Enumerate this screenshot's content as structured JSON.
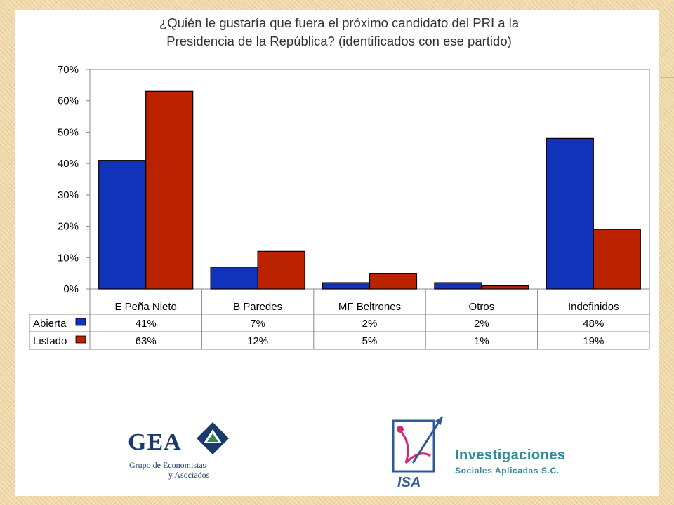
{
  "chart_data": {
    "type": "bar",
    "title_lines": [
      "¿Quién le gustaría que fuera el próximo candidato del PRI a la",
      "Presidencia de la República? (identificados con ese partido)"
    ],
    "categories": [
      "E Peña Nieto",
      "B Paredes",
      "MF Beltrones",
      "Otros",
      "Indefinidos"
    ],
    "series": [
      {
        "name": "Abierta",
        "values": [
          41,
          7,
          2,
          2,
          48
        ],
        "labels": [
          "41%",
          "7%",
          "2%",
          "2%",
          "48%"
        ],
        "color": "#1133bb"
      },
      {
        "name": "Listado",
        "values": [
          63,
          12,
          5,
          1,
          19
        ],
        "labels": [
          "63%",
          "12%",
          "5%",
          "1%",
          "19%"
        ],
        "color": "#bb2200"
      }
    ],
    "yticks": [
      "0%",
      "10%",
      "20%",
      "30%",
      "40%",
      "50%",
      "60%",
      "70%"
    ],
    "ylim": [
      0,
      70
    ],
    "grid": false,
    "legend": "data-table"
  },
  "logos": {
    "gea": {
      "text": "GEA",
      "subtitle_1": "Grupo de Economistas",
      "subtitle_2": "y Asociados",
      "emblem_icon": "gea-emblem-icon"
    },
    "isa": {
      "name": "Investigaciones",
      "subtitle": "Sociales Aplicadas S.C.",
      "mark": "ISA",
      "emblem_icon": "isa-emblem-icon"
    }
  }
}
